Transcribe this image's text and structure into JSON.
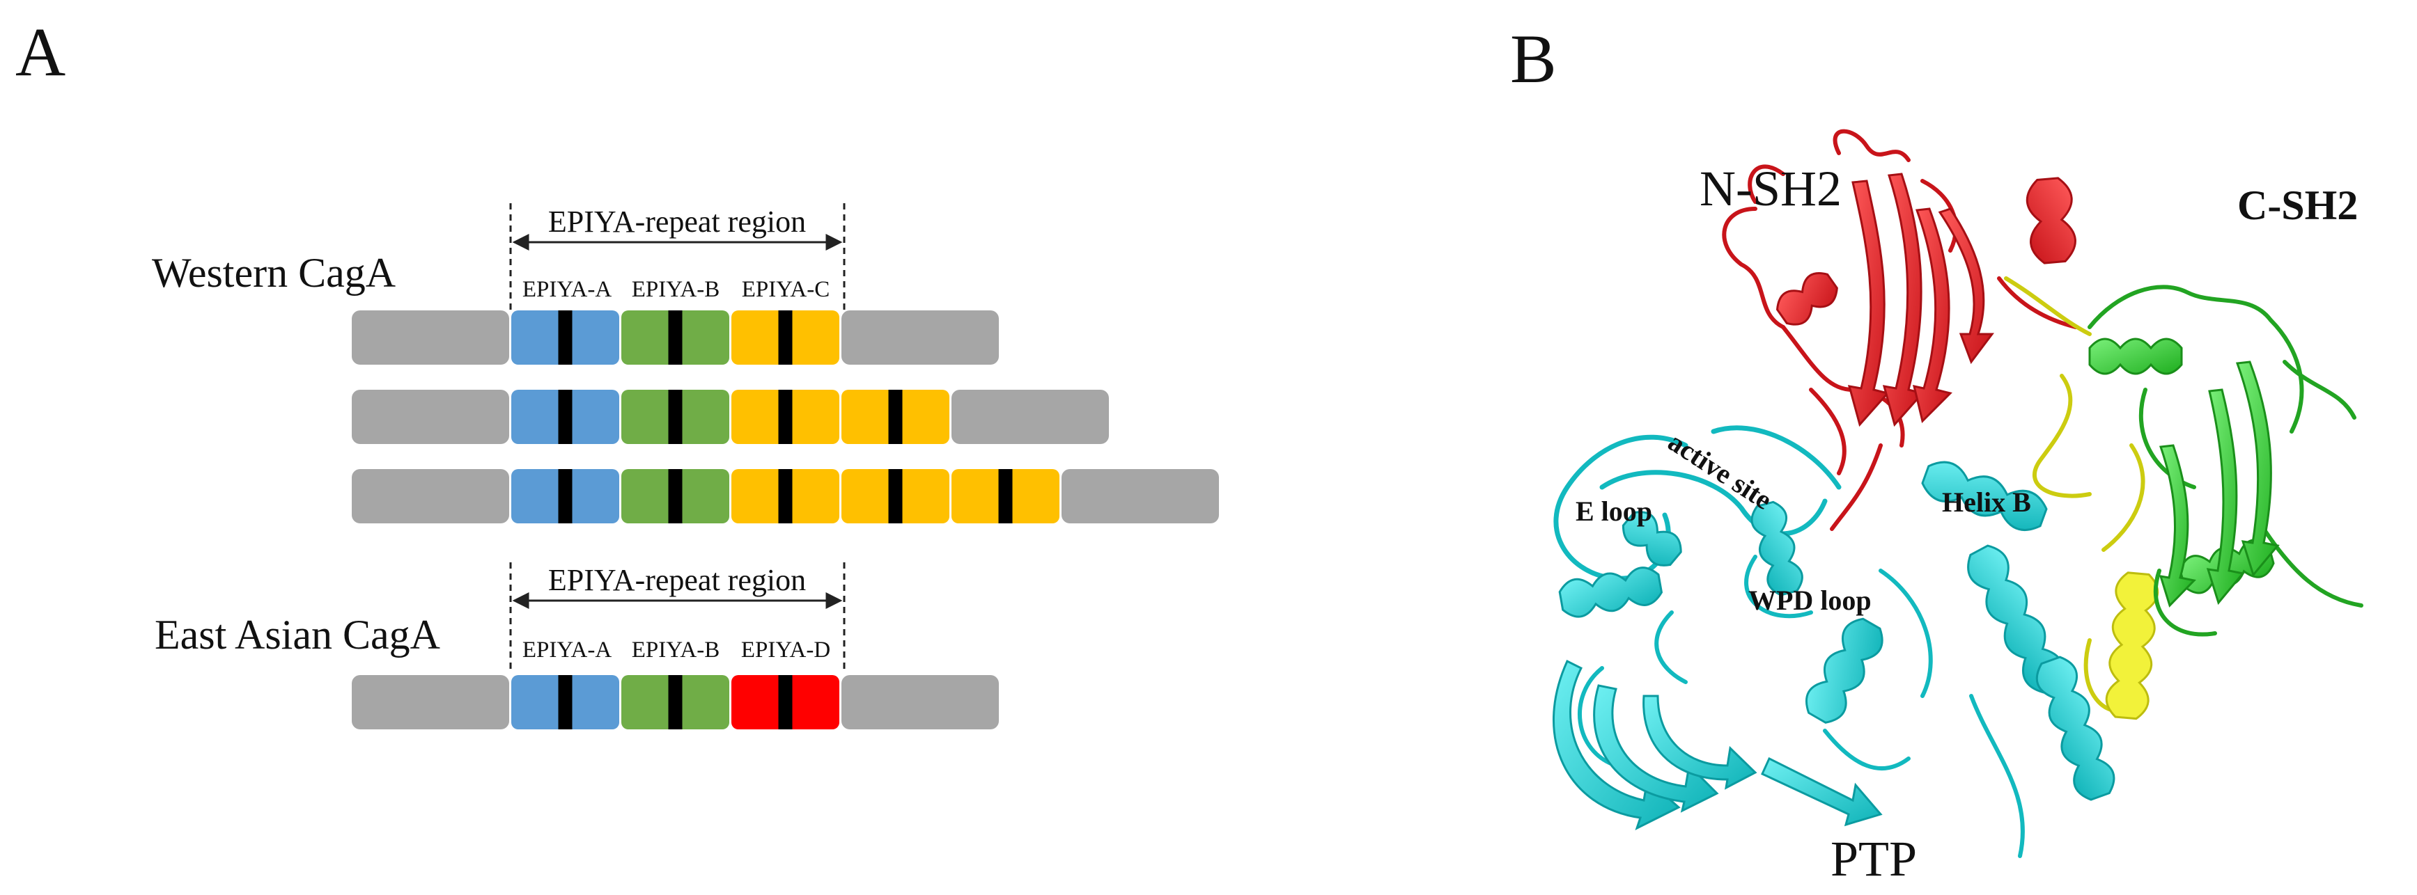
{
  "panels": {
    "a_label": "A",
    "b_label": "B"
  },
  "panel_a": {
    "repeat_region_label": "EPIYA-repeat region",
    "western": {
      "label": "Western CagA",
      "segment_labels": [
        "EPIYA-A",
        "EPIYA-B",
        "EPIYA-C"
      ],
      "rows": [
        [
          "EPIYA-A",
          "EPIYA-B",
          "EPIYA-C"
        ],
        [
          "EPIYA-A",
          "EPIYA-B",
          "EPIYA-C",
          "EPIYA-C"
        ],
        [
          "EPIYA-A",
          "EPIYA-B",
          "EPIYA-C",
          "EPIYA-C",
          "EPIYA-C"
        ]
      ]
    },
    "east_asian": {
      "label": "East Asian CagA",
      "segment_labels": [
        "EPIYA-A",
        "EPIYA-B",
        "EPIYA-D"
      ],
      "rows": [
        [
          "EPIYA-A",
          "EPIYA-B",
          "EPIYA-D"
        ]
      ]
    },
    "colors": {
      "backbone": "#a6a6a6",
      "EPIYA-A": "#5b9bd5",
      "EPIYA-B": "#70ad47",
      "EPIYA-C": "#ffc000",
      "EPIYA-D": "#ff0000",
      "motif": "#000000"
    }
  },
  "panel_b": {
    "labels": {
      "n_sh2": "N-SH2",
      "c_sh2": "C-SH2",
      "active_site": "active site",
      "e_loop": "E loop",
      "helix_b": "Helix B",
      "wpd_loop": "WPD loop",
      "ptp": "PTP"
    },
    "colors": {
      "n_sh2": "#e8262b",
      "c_sh2": "#3ccc3c",
      "ptp": "#1fd3d8",
      "linker": "#e6e61e"
    }
  }
}
